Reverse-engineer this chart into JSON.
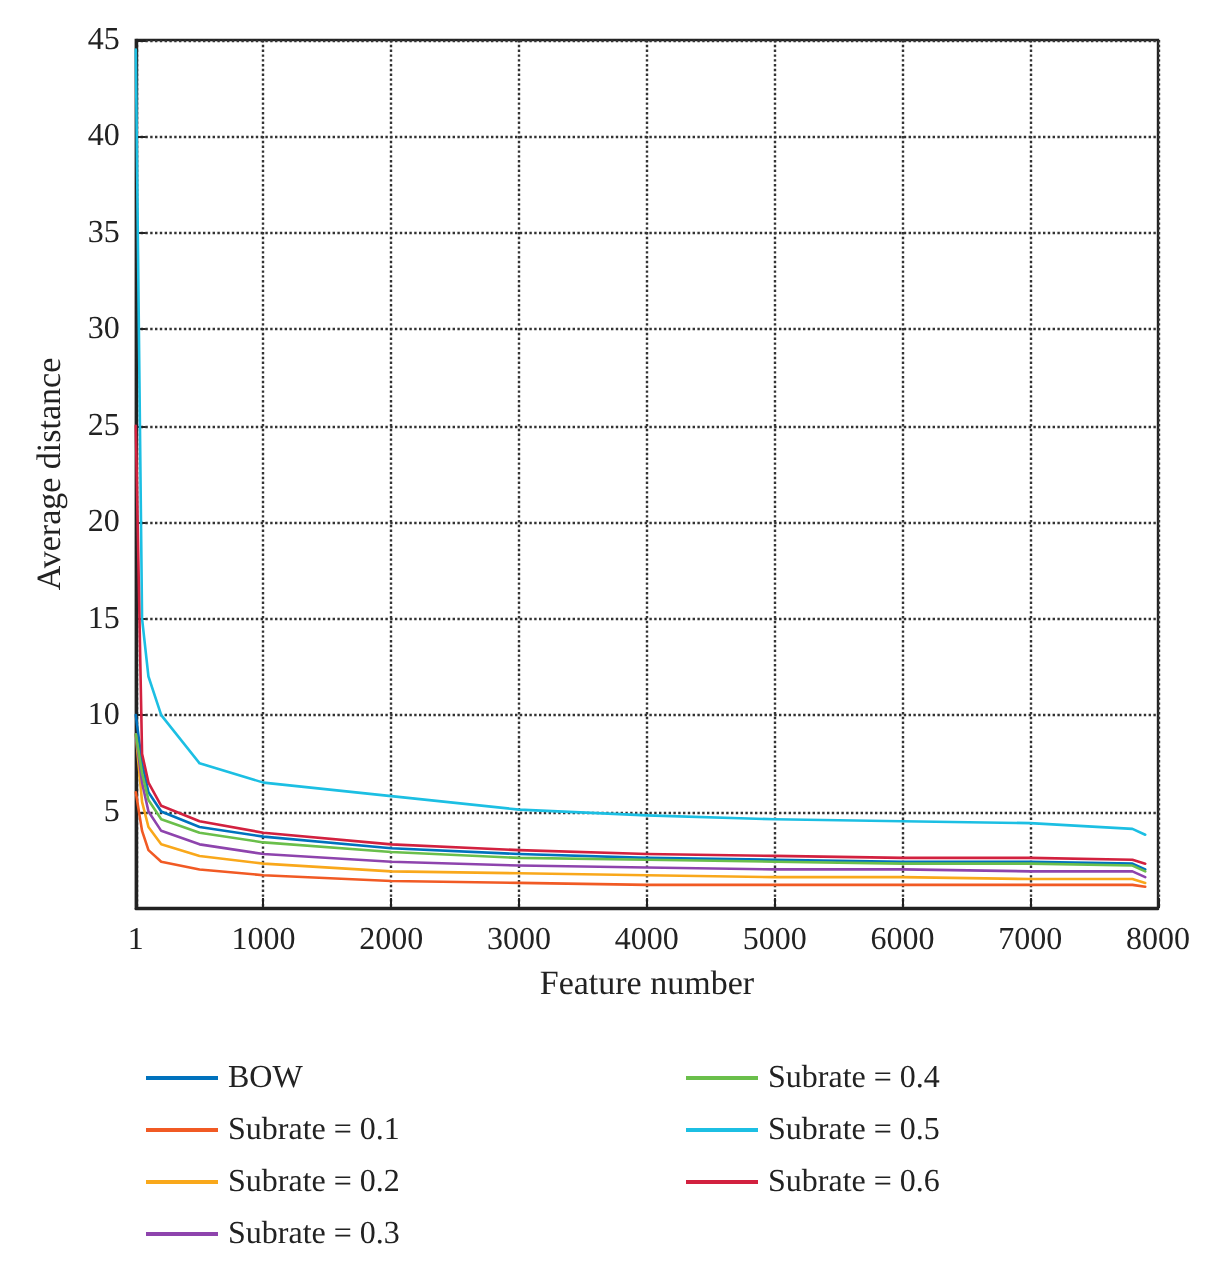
{
  "chart_data": {
    "type": "line",
    "xlabel": "Feature number",
    "ylabel": "Average distance",
    "x": [
      1,
      50,
      100,
      200,
      500,
      1000,
      2000,
      3000,
      4000,
      5000,
      6000,
      7000,
      7800,
      7900
    ],
    "series": [
      {
        "name": "BOW",
        "color": "#0072bd",
        "values": [
          10,
          7.5,
          6,
          5,
          4.2,
          3.7,
          3.1,
          2.8,
          2.6,
          2.5,
          2.4,
          2.4,
          2.3,
          2.0
        ]
      },
      {
        "name": "Subrate = 0.1",
        "color": "#f15a24",
        "values": [
          6,
          4,
          3,
          2.4,
          2,
          1.7,
          1.4,
          1.3,
          1.2,
          1.2,
          1.2,
          1.2,
          1.2,
          1.1
        ]
      },
      {
        "name": "Subrate = 0.2",
        "color": "#f9a81b",
        "values": [
          9,
          5.5,
          4.2,
          3.3,
          2.7,
          2.3,
          1.9,
          1.8,
          1.7,
          1.6,
          1.6,
          1.5,
          1.5,
          1.3
        ]
      },
      {
        "name": "Subrate = 0.3",
        "color": "#8e44ad",
        "values": [
          9,
          6.5,
          5,
          4,
          3.3,
          2.8,
          2.4,
          2.2,
          2.1,
          2.0,
          2.0,
          1.9,
          1.9,
          1.6
        ]
      },
      {
        "name": "Subrate = 0.4",
        "color": "#6abf4b",
        "values": [
          9,
          7,
          5.6,
          4.6,
          3.9,
          3.4,
          2.9,
          2.6,
          2.5,
          2.4,
          2.3,
          2.3,
          2.2,
          1.9
        ]
      },
      {
        "name": "Subrate = 0.5",
        "color": "#1cbfe3",
        "values": [
          44.5,
          15,
          12,
          10,
          7.5,
          6.5,
          5.8,
          5.1,
          4.8,
          4.6,
          4.5,
          4.4,
          4.1,
          3.8
        ]
      },
      {
        "name": "Subrate = 0.6",
        "color": "#d2213f",
        "values": [
          25,
          8,
          6.5,
          5.3,
          4.5,
          3.9,
          3.3,
          3.0,
          2.8,
          2.7,
          2.6,
          2.6,
          2.5,
          2.3
        ]
      }
    ],
    "xlim": [
      1,
      8000
    ],
    "xticks": [
      1,
      1000,
      2000,
      3000,
      4000,
      5000,
      6000,
      7000,
      8000
    ],
    "ylim": [
      0,
      45
    ],
    "yticks": [
      5,
      10,
      15,
      20,
      25,
      30,
      35,
      40,
      45
    ],
    "grid": true,
    "legend": "bottom",
    "marker": "none",
    "line_style": "solid"
  }
}
